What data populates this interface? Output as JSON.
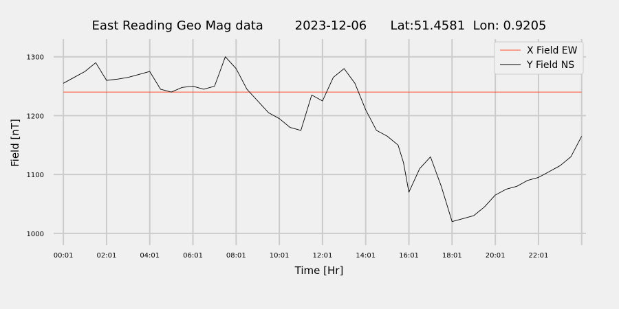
{
  "chart_data": {
    "type": "line",
    "title": "East Reading Geo Mag data        2023-12-06      Lat:51.4581  Lon: 0.9205",
    "xlabel": "Time  [Hr]",
    "ylabel": "Field  [nT]",
    "ylim": [
      980,
      1330
    ],
    "xlim": [
      -0.45,
      24.2
    ],
    "grid": true,
    "legend_position": "top-right",
    "x_ticks": [
      "00:01",
      "02:01",
      "04:01",
      "06:01",
      "08:01",
      "10:01",
      "12:01",
      "14:01",
      "16:01",
      "18:01",
      "20:01",
      "22:01"
    ],
    "y_ticks": [
      1000,
      1100,
      1200,
      1300
    ],
    "series": [
      {
        "name": "X Field EW",
        "color": "#fc4f30",
        "x": [
          0.0,
          24.0
        ],
        "y": [
          1240,
          1240
        ]
      },
      {
        "name": "Y Field NS",
        "color": "#000000",
        "x": [
          0.0,
          0.5,
          1.0,
          1.5,
          2.0,
          2.5,
          3.0,
          3.5,
          4.0,
          4.5,
          5.0,
          5.5,
          6.0,
          6.5,
          7.0,
          7.25,
          7.5,
          8.0,
          8.5,
          9.0,
          9.5,
          10.0,
          10.5,
          11.0,
          11.5,
          12.0,
          12.5,
          13.0,
          13.5,
          14.0,
          14.5,
          15.0,
          15.5,
          15.75,
          16.0,
          16.5,
          17.0,
          17.5,
          18.0,
          18.5,
          19.0,
          19.5,
          20.0,
          20.5,
          21.0,
          21.5,
          22.0,
          22.5,
          23.0,
          23.5,
          24.0
        ],
        "y": [
          1255,
          1265,
          1275,
          1290,
          1260,
          1262,
          1265,
          1270,
          1275,
          1245,
          1240,
          1248,
          1250,
          1245,
          1250,
          1275,
          1300,
          1280,
          1245,
          1225,
          1205,
          1195,
          1180,
          1175,
          1235,
          1225,
          1265,
          1280,
          1255,
          1210,
          1175,
          1165,
          1150,
          1120,
          1070,
          1110,
          1130,
          1080,
          1020,
          1025,
          1030,
          1045,
          1065,
          1075,
          1080,
          1090,
          1095,
          1105,
          1115,
          1130,
          1165
        ]
      }
    ]
  }
}
